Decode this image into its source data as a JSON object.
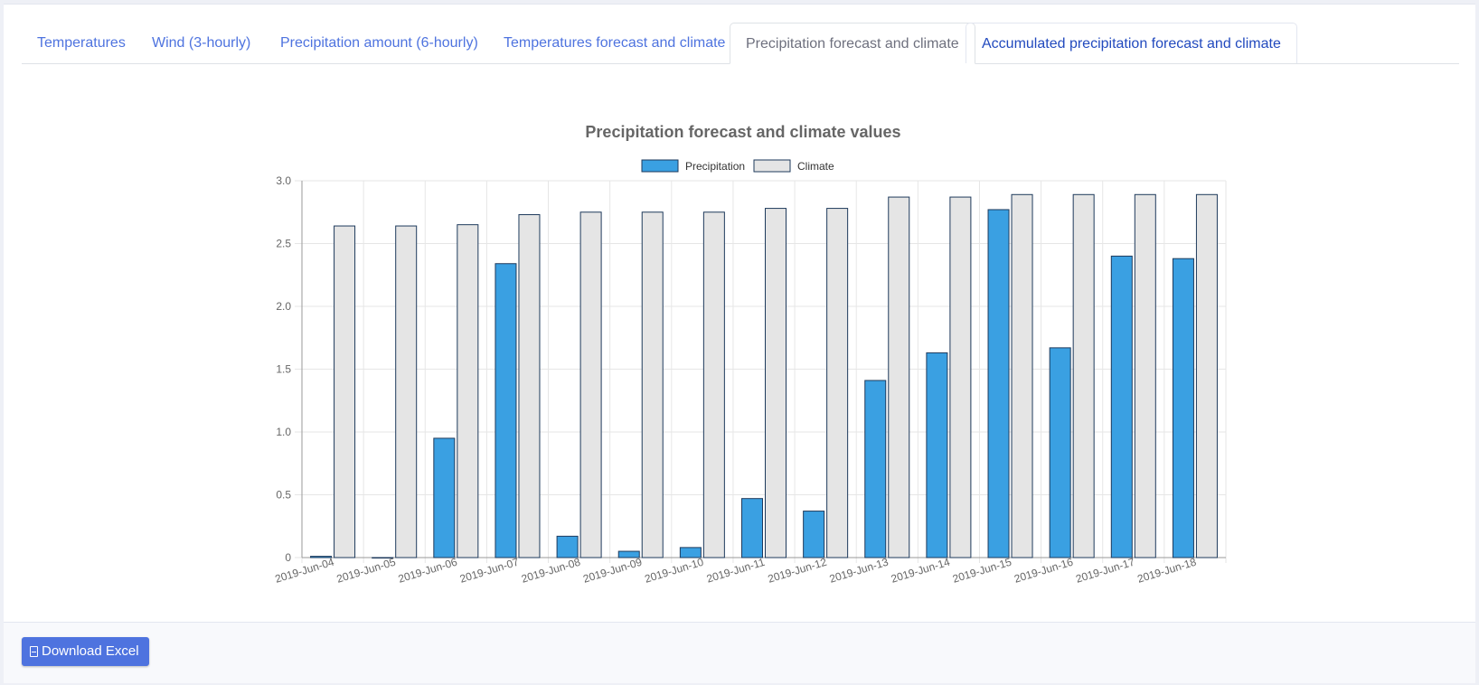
{
  "tabs": [
    {
      "label": "Temperatures"
    },
    {
      "label": "Wind (3-hourly)"
    },
    {
      "label": "Precipitation amount (6-hourly)"
    },
    {
      "label": "Temperatures forecast and climate"
    },
    {
      "label": "Precipitation forecast and climate"
    },
    {
      "label": "Accumulated precipitation forecast and climate"
    }
  ],
  "footer": {
    "download_label": "Download Excel"
  },
  "colors": {
    "precipitation": "#3aa0e2",
    "climate": "#e5e5e5",
    "bar_border": "#1e3a5c"
  },
  "chart_data": {
    "type": "bar",
    "title": "Precipitation forecast and climate values",
    "legend_position": "top",
    "grid": true,
    "ylim": [
      0,
      3.0
    ],
    "yticks": [
      "0",
      "0.5",
      "1.0",
      "1.5",
      "2.0",
      "2.5",
      "3.0"
    ],
    "categories": [
      "2019-Jun-04",
      "2019-Jun-05",
      "2019-Jun-06",
      "2019-Jun-07",
      "2019-Jun-08",
      "2019-Jun-09",
      "2019-Jun-10",
      "2019-Jun-11",
      "2019-Jun-12",
      "2019-Jun-13",
      "2019-Jun-14",
      "2019-Jun-15",
      "2019-Jun-16",
      "2019-Jun-17",
      "2019-Jun-18"
    ],
    "series": [
      {
        "name": "Precipitation",
        "values": [
          0.01,
          0.0,
          0.95,
          2.34,
          0.17,
          0.05,
          0.08,
          0.47,
          0.37,
          1.41,
          1.63,
          2.77,
          1.67,
          2.4,
          2.38
        ]
      },
      {
        "name": "Climate",
        "values": [
          2.64,
          2.64,
          2.65,
          2.73,
          2.75,
          2.75,
          2.75,
          2.78,
          2.78,
          2.87,
          2.87,
          2.89,
          2.89,
          2.89,
          2.89
        ]
      }
    ]
  }
}
